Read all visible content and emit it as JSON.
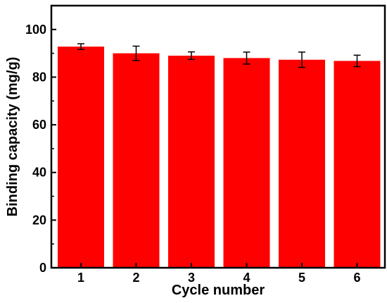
{
  "chart_data": {
    "type": "bar",
    "title": "",
    "xlabel": "Cycle number",
    "ylabel": "Binding capacity (mg/g)",
    "categories": [
      "1",
      "2",
      "3",
      "4",
      "5",
      "6"
    ],
    "values": [
      92.8,
      90.0,
      89.0,
      88.0,
      87.3,
      86.8
    ],
    "errors": [
      1.2,
      3.0,
      1.6,
      2.5,
      3.2,
      2.4
    ],
    "ylim": [
      0,
      110
    ],
    "yticks": [
      0,
      20,
      40,
      60,
      80,
      100
    ],
    "yticklabels": [
      "0",
      "20",
      "40",
      "60",
      "80",
      "100"
    ],
    "bar_color": "#ff0000",
    "error_bar_color": "#000000",
    "grid": false,
    "legend": "none"
  }
}
